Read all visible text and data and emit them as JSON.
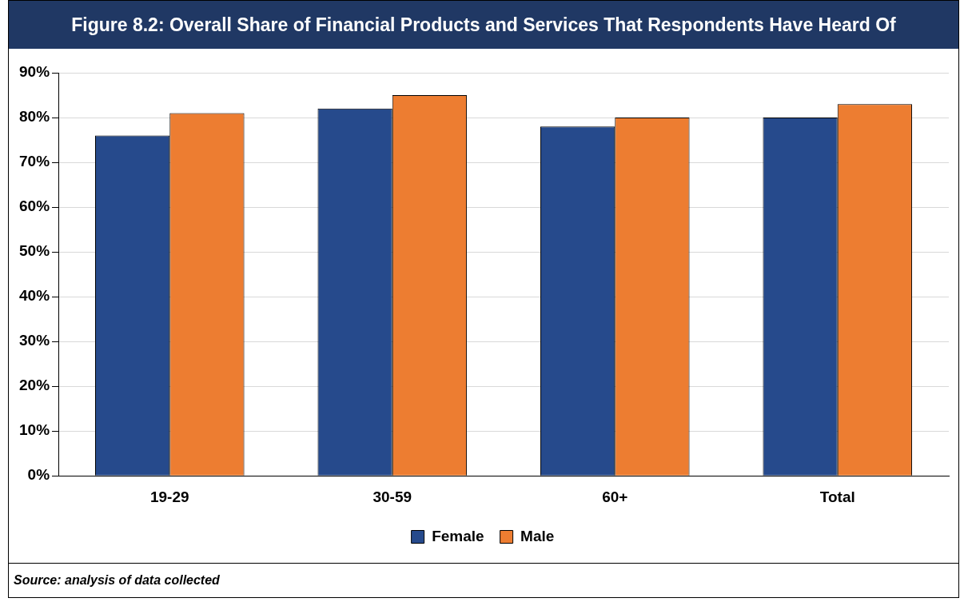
{
  "chart_data": {
    "type": "bar",
    "title": "Figure 8.2: Overall Share of Financial Products and Services That Respondents Have Heard Of",
    "categories": [
      "19-29",
      "30-59",
      "60+",
      "Total"
    ],
    "series": [
      {
        "name": "Female",
        "color": "#264a8c",
        "values": [
          76,
          82,
          78,
          80
        ]
      },
      {
        "name": "Male",
        "color": "#ed7d31",
        "values": [
          81,
          85,
          80,
          83
        ]
      }
    ],
    "ylim": [
      0,
      90
    ],
    "yticks": [
      {
        "value": 0,
        "label": "0%"
      },
      {
        "value": 10,
        "label": "10%"
      },
      {
        "value": 20,
        "label": "20%"
      },
      {
        "value": 30,
        "label": "30%"
      },
      {
        "value": 40,
        "label": "40%"
      },
      {
        "value": 50,
        "label": "50%"
      },
      {
        "value": 60,
        "label": "60%"
      },
      {
        "value": 70,
        "label": "70%"
      },
      {
        "value": 80,
        "label": "80%"
      },
      {
        "value": 90,
        "label": "90%"
      }
    ],
    "grid": "y",
    "legend": "bottom",
    "annotations": [
      "Source: analysis of data collected"
    ]
  }
}
